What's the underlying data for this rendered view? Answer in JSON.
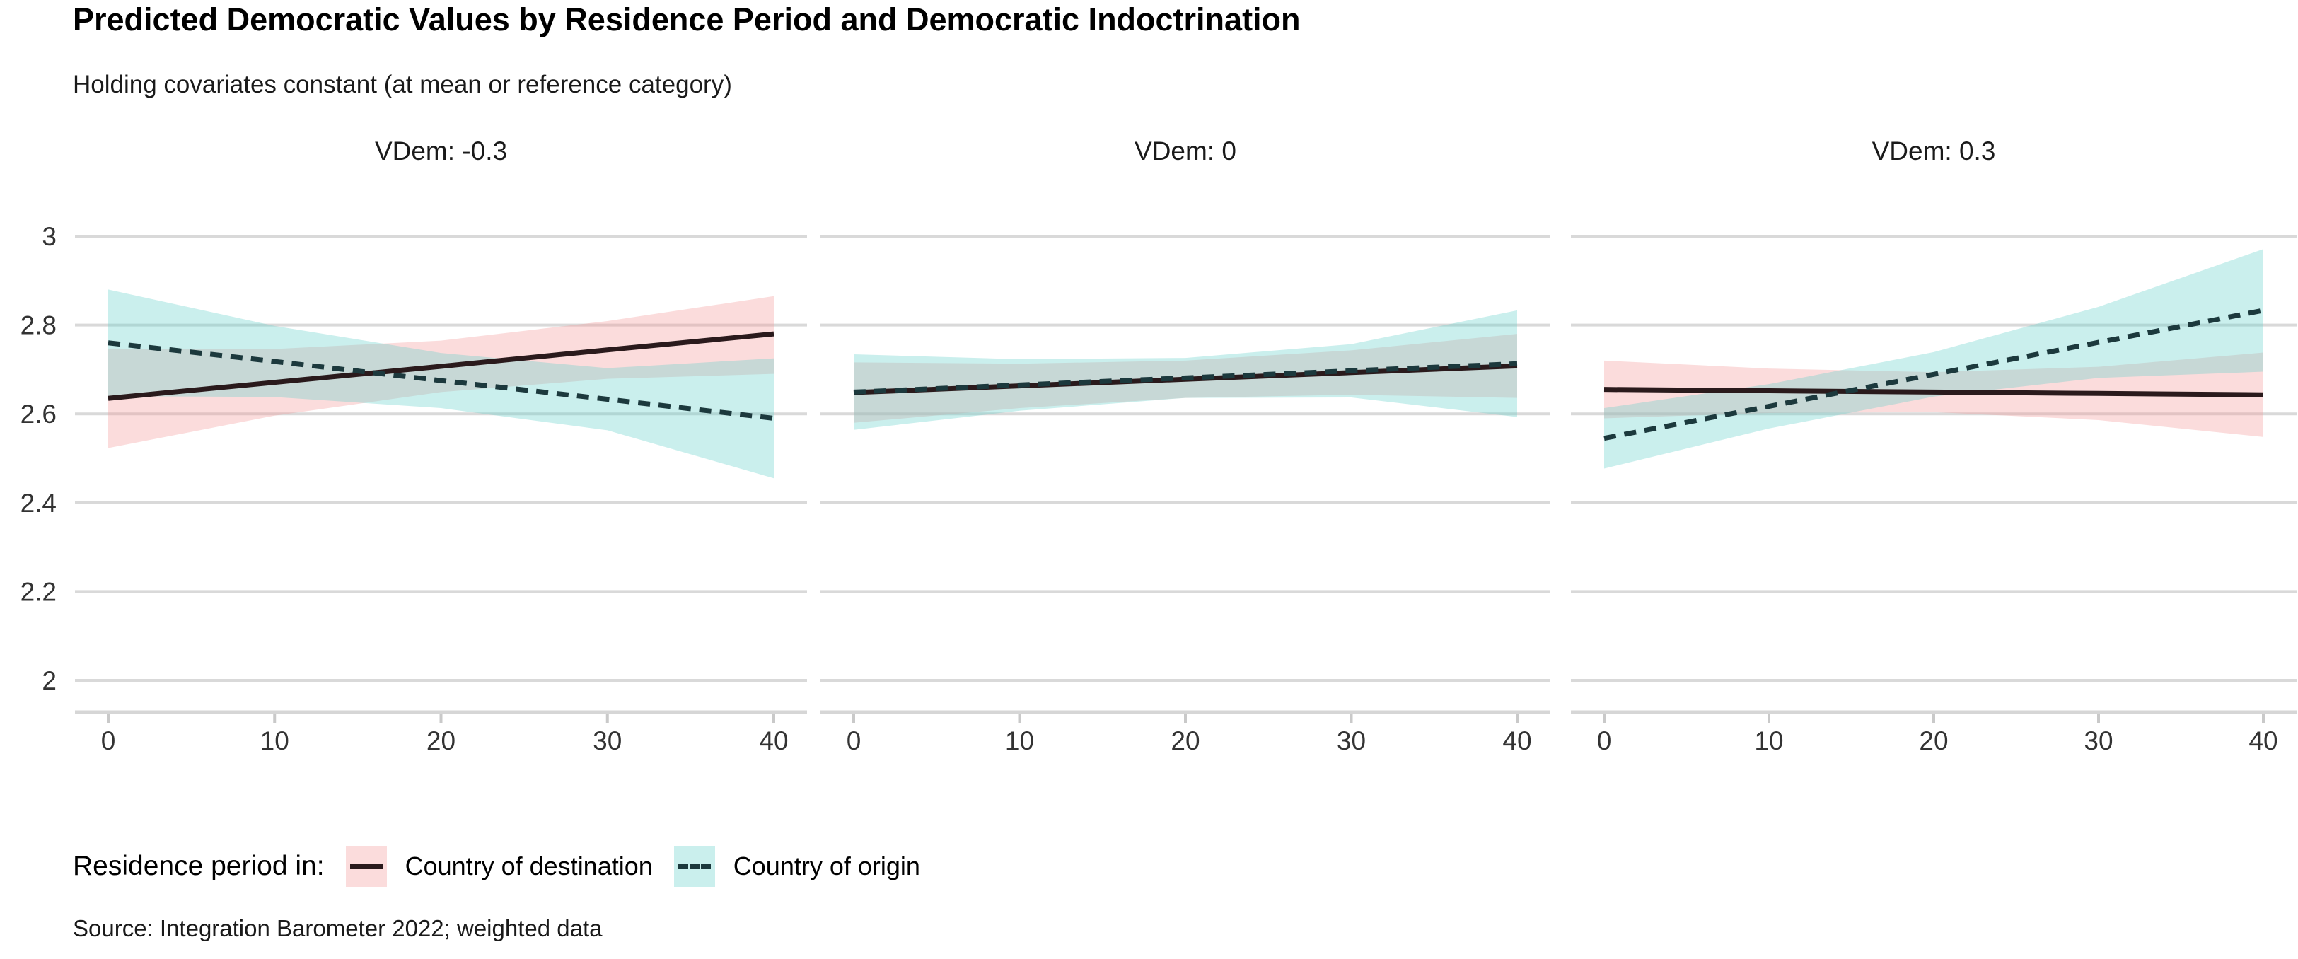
{
  "chart_data": {
    "type": "line",
    "title": "Predicted Democratic Values by Residence Period and Democratic Indoctrination",
    "subtitle": "Holding covariates constant (at mean or reference category)",
    "caption": "Source: Integration Barometer 2022; weighted data",
    "xlabel": "",
    "ylabel": "",
    "x": [
      0,
      10,
      20,
      30,
      40
    ],
    "x_tick_labels": [
      "0",
      "10",
      "20",
      "30",
      "40"
    ],
    "y_ticks": [
      2,
      2.2,
      2.4,
      2.6,
      2.8,
      3
    ],
    "y_tick_labels": [
      "2",
      "2.2",
      "2.4",
      "2.6",
      "2.8",
      "3"
    ],
    "xlim": [
      -2,
      42
    ],
    "ylim": [
      1.93,
      3.03
    ],
    "grid": "horizontal-major-only",
    "legend_position": "bottom-left",
    "legend": {
      "title": "Residence period in:",
      "items": [
        {
          "label": "Country of destination",
          "line_style": "solid",
          "fill": "#f49a9a",
          "line_color": "#2a1a1c"
        },
        {
          "label": "Country of origin",
          "line_style": "dashed",
          "fill": "#66d2ca",
          "line_color": "#1c393d"
        }
      ]
    },
    "facets": [
      {
        "label": "VDem: -0.3",
        "series": [
          {
            "name": "Country of destination",
            "style": "solid",
            "values": [
              2.635,
              2.671,
              2.707,
              2.744,
              2.78
            ],
            "ci_upper": [
              2.747,
              2.746,
              2.765,
              2.809,
              2.865
            ],
            "ci_lower": [
              2.523,
              2.596,
              2.649,
              2.679,
              2.69
            ]
          },
          {
            "name": "Country of origin",
            "style": "dashed",
            "values": [
              2.76,
              2.718,
              2.675,
              2.633,
              2.59
            ],
            "ci_upper": [
              2.88,
              2.798,
              2.737,
              2.703,
              2.725
            ],
            "ci_lower": [
              2.64,
              2.638,
              2.613,
              2.563,
              2.455
            ]
          }
        ]
      },
      {
        "label": "VDem: 0",
        "series": [
          {
            "name": "Country of destination",
            "style": "solid",
            "values": [
              2.648,
              2.663,
              2.678,
              2.693,
              2.708
            ],
            "ci_upper": [
              2.716,
              2.713,
              2.72,
              2.743,
              2.78
            ],
            "ci_lower": [
              2.58,
              2.613,
              2.636,
              2.643,
              2.636
            ]
          },
          {
            "name": "Country of origin",
            "style": "dashed",
            "values": [
              2.649,
              2.665,
              2.681,
              2.697,
              2.713
            ],
            "ci_upper": [
              2.734,
              2.723,
              2.726,
              2.757,
              2.833
            ],
            "ci_lower": [
              2.564,
              2.607,
              2.636,
              2.637,
              2.593
            ]
          }
        ]
      },
      {
        "label": "VDem: 0.3",
        "series": [
          {
            "name": "Country of destination",
            "style": "solid",
            "values": [
              2.655,
              2.652,
              2.649,
              2.646,
              2.643
            ],
            "ci_upper": [
              2.72,
              2.702,
              2.694,
              2.706,
              2.738
            ],
            "ci_lower": [
              2.59,
              2.602,
              2.604,
              2.586,
              2.548
            ]
          },
          {
            "name": "Country of origin",
            "style": "dashed",
            "values": [
              2.545,
              2.617,
              2.689,
              2.761,
              2.833
            ],
            "ci_upper": [
              2.613,
              2.667,
              2.739,
              2.841,
              2.971
            ],
            "ci_lower": [
              2.477,
              2.567,
              2.639,
              2.681,
              2.695
            ]
          }
        ]
      }
    ],
    "colors": {
      "destination_line": "#2a1a1c",
      "origin_line": "#1c393d",
      "destination_fill": "#f49a9a",
      "origin_fill": "#66d2ca",
      "ribbon_opacity": 0.35,
      "gridline": "#d9d9d9",
      "axis_line": "#d6d6d6",
      "tick_mark": "#c9c9c9",
      "axis_text": "#333333",
      "strip_text": "#1a1a1a"
    }
  }
}
